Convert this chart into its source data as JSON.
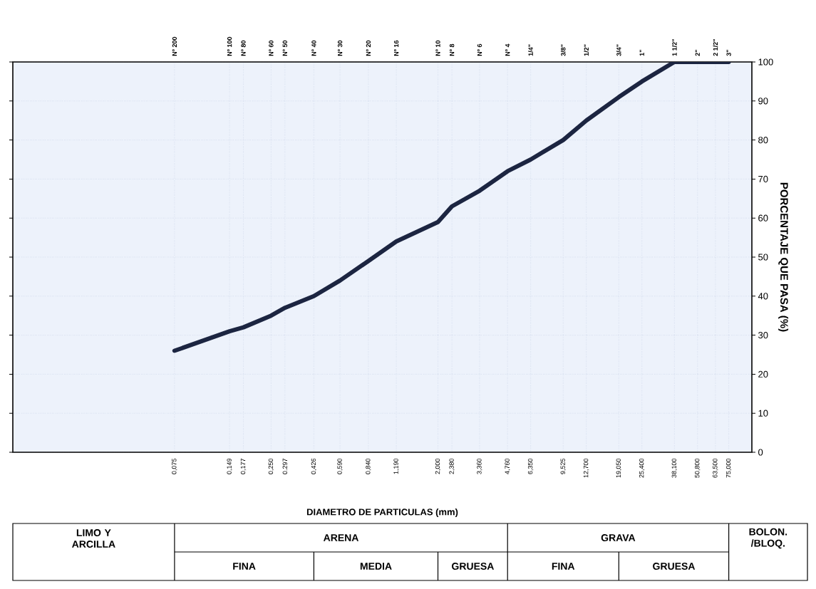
{
  "chart_data": {
    "type": "line",
    "xlabel": "DIAMETRO DE PARTICULAS (mm)",
    "ylabel": "PORCENTAJE QUE PASA (%)",
    "log": "x",
    "grid": true,
    "line_style": "solid",
    "x": [
      0.075,
      0.149,
      0.177,
      0.25,
      0.297,
      0.426,
      0.59,
      0.84,
      1.19,
      2.0,
      2.38,
      3.36,
      4.76,
      6.35,
      9.525,
      12.7,
      19.05,
      25.4,
      38.1,
      50.8,
      63.5,
      75.0
    ],
    "series": [
      {
        "color": "#1c2541",
        "values": [
          26,
          31,
          32,
          35,
          37,
          40,
          44,
          49,
          54,
          59,
          63,
          67,
          72,
          75,
          80,
          85,
          91,
          95,
          100,
          100,
          100,
          100
        ]
      }
    ],
    "xlim": [
      0.01,
      100
    ],
    "xticks": [
      {
        "value": 0.075,
        "label": "0,075"
      },
      {
        "value": 0.149,
        "label": "0,149"
      },
      {
        "value": 0.177,
        "label": "0,177"
      },
      {
        "value": 0.25,
        "label": "0,250"
      },
      {
        "value": 0.297,
        "label": "0.297"
      },
      {
        "value": 0.426,
        "label": "0,426"
      },
      {
        "value": 0.59,
        "label": "0,590"
      },
      {
        "value": 0.84,
        "label": "0,840"
      },
      {
        "value": 1.19,
        "label": "1,190"
      },
      {
        "value": 2.0,
        "label": "2,000"
      },
      {
        "value": 2.38,
        "label": "2,380"
      },
      {
        "value": 3.36,
        "label": "3,360"
      },
      {
        "value": 4.76,
        "label": "4,760"
      },
      {
        "value": 6.35,
        "label": "6,350"
      },
      {
        "value": 9.525,
        "label": "9,525"
      },
      {
        "value": 12.7,
        "label": "12,700"
      },
      {
        "value": 19.05,
        "label": "19,050"
      },
      {
        "value": 25.4,
        "label": "25,400"
      },
      {
        "value": 38.1,
        "label": "38,100"
      },
      {
        "value": 50.8,
        "label": "50,800"
      },
      {
        "value": 63.5,
        "label": "63,500"
      },
      {
        "value": 75.0,
        "label": "75,000"
      }
    ],
    "ylim": [
      0,
      100
    ],
    "yticks": [
      0,
      10,
      20,
      30,
      40,
      50,
      60,
      70,
      80,
      90,
      100
    ],
    "annotations": [
      "LIMO Y ARCILLA",
      "ARENA",
      "GRAVA",
      "BOLON. /BLOQ.",
      "FINA",
      "MEDIA",
      "GRUESA",
      "FINA",
      "GRUESA",
      "Nº 200",
      "Nº 100",
      "Nº 80",
      "Nº 60",
      "Nº 50",
      "Nº 40",
      "Nº 30",
      "Nº 20",
      "Nº 16",
      "Nº 10",
      "Nº 8",
      "Nº 6",
      "Nº 4",
      "1/4\"",
      "3/8\"",
      "1/2\"",
      "3/4\"",
      "1\"",
      "1 1/2\"",
      "2\"",
      "2 1/2\"",
      "3\""
    ]
  }
}
